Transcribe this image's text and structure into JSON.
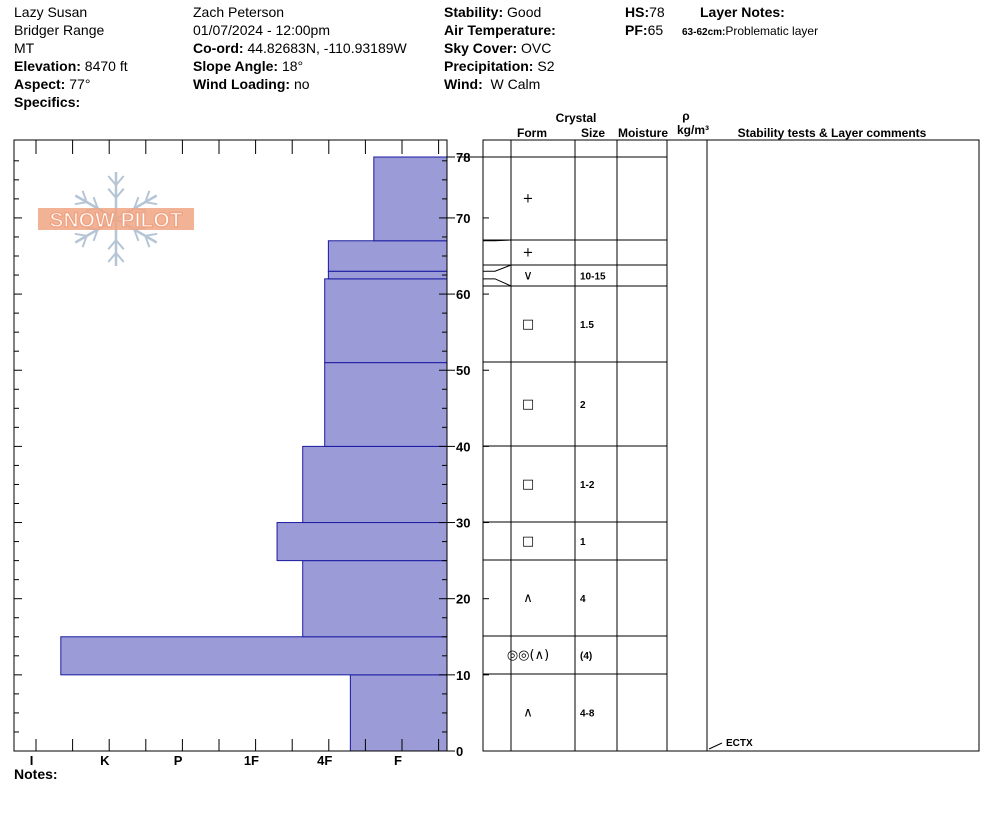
{
  "header": {
    "site": "Lazy Susan",
    "range": "Bridger Range",
    "state": "MT",
    "elevation_label": "Elevation:",
    "elevation": "8470 ft",
    "aspect_label": "Aspect:",
    "aspect": "77°",
    "specifics_label": "Specifics:",
    "observer": "Zach Peterson",
    "datetime": "01/07/2024 - 12:00pm",
    "coord_label": "Co-ord:",
    "coord": "44.82683N, -110.93189W",
    "slope_label": "Slope Angle:",
    "slope": "18°",
    "wind_loading_label": "Wind Loading:",
    "wind_loading": "no",
    "stability_label": "Stability:",
    "stability": "Good",
    "air_temp_label": "Air Temperature:",
    "sky_label": "Sky Cover:",
    "sky": "OVC",
    "precip_label": "Precipitation:",
    "precip": "S2",
    "wind_label": "Wind:",
    "wind": "W Calm",
    "hs_label": "HS:",
    "hs": "78",
    "pf_label": "PF:",
    "pf": "65",
    "layer_notes_label": "Layer Notes:",
    "layer_note_range": "63-62cm:",
    "layer_note_text": "Problematic layer",
    "notes_label": "Notes:"
  },
  "logo_text": "SNOW PILOT",
  "colors": {
    "bar": "#9b9bd8",
    "bar_stroke": "#1a1aa0",
    "logo": "#f0a484",
    "flake": "#b5c5d5"
  },
  "chart_data": {
    "type": "bar",
    "orientation": "horizontal",
    "y_range": [
      0,
      78
    ],
    "y_ticks": [
      0,
      10,
      20,
      30,
      40,
      50,
      60,
      70,
      78
    ],
    "hardness_ticks": [
      "I",
      "K",
      "P",
      "1F",
      "4F",
      "F"
    ],
    "hardness_scale_note": "index: F=0, 4F=1, 1F=2, P=3, K=4, I=5",
    "layers": [
      {
        "bottom": 0,
        "top": 10,
        "hardness": 0.65
      },
      {
        "bottom": 10,
        "top": 15,
        "hardness": 4.6
      },
      {
        "bottom": 15,
        "top": 25,
        "hardness": 1.3
      },
      {
        "bottom": 25,
        "top": 30,
        "hardness": 1.65
      },
      {
        "bottom": 30,
        "top": 40,
        "hardness": 1.3
      },
      {
        "bottom": 40,
        "top": 51,
        "hardness": 1.0
      },
      {
        "bottom": 51,
        "top": 62,
        "hardness": 1.0
      },
      {
        "bottom": 62,
        "top": 63,
        "hardness": 0.95
      },
      {
        "bottom": 63,
        "top": 67,
        "hardness": 0.95
      },
      {
        "bottom": 67,
        "top": 78,
        "hardness": 0.33
      }
    ],
    "column_headers": {
      "crystal": "Crystal",
      "form": "Form",
      "size": "Size",
      "moisture": "Moisture",
      "rho": "ρ",
      "density_unit": "kg/m³",
      "comments": "Stability tests & Layer comments"
    },
    "crystal_rows": [
      {
        "form": "+",
        "size": ""
      },
      {
        "form": "+",
        "size": ""
      },
      {
        "form": "∨",
        "size": "10-15"
      },
      {
        "form": "□",
        "size": "1.5"
      },
      {
        "form": "□",
        "size": "2"
      },
      {
        "form": "□",
        "size": "1-2"
      },
      {
        "form": "□",
        "size": "1"
      },
      {
        "form": "∧",
        "size": "4"
      },
      {
        "form": "◎◎(∧)",
        "size": "(4)"
      },
      {
        "form": "∧",
        "size": "4-8"
      }
    ],
    "stability_test": {
      "label": "ECTX",
      "depth": 0
    }
  }
}
